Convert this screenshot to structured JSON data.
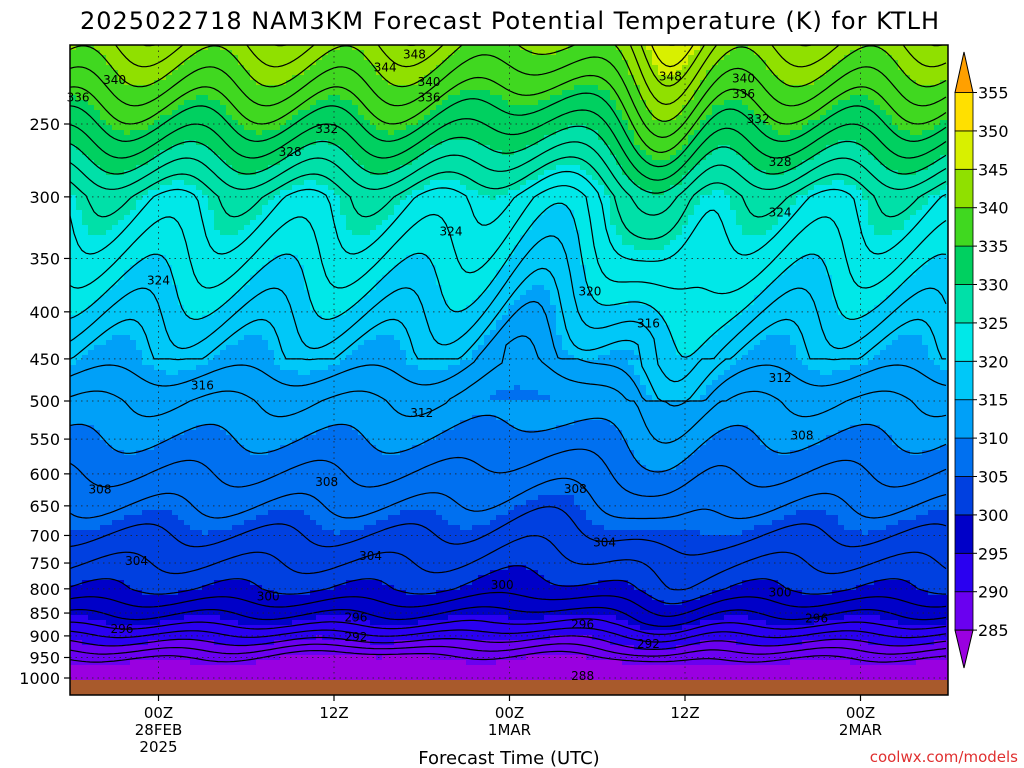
{
  "chart_data": {
    "type": "heatmap",
    "title": "2025022718 NAM3KM Forecast Potential Temperature (K) for KTLH",
    "xlabel": "Forecast Time (UTC)",
    "ylabel": "",
    "y_scale": "log",
    "y_reversed": true,
    "y_ticks": [
      250,
      300,
      350,
      400,
      450,
      500,
      550,
      600,
      650,
      700,
      750,
      800,
      850,
      900,
      950,
      1000
    ],
    "x_ticks": [
      {
        "hour": 6,
        "lines": [
          "00Z",
          "28FEB",
          "2025"
        ]
      },
      {
        "hour": 18,
        "lines": [
          "12Z"
        ]
      },
      {
        "hour": 30,
        "lines": [
          "00Z",
          "1MAR"
        ]
      },
      {
        "hour": 42,
        "lines": [
          "12Z"
        ]
      },
      {
        "hour": 54,
        "lines": [
          "00Z",
          "2MAR"
        ]
      }
    ],
    "x_range_hours": [
      0,
      60
    ],
    "grid": true,
    "colorbar": {
      "levels": [
        285,
        290,
        295,
        300,
        305,
        310,
        315,
        320,
        325,
        330,
        335,
        340,
        345,
        350,
        355
      ],
      "colors": [
        "#9a00e0",
        "#6a00f0",
        "#2a00f0",
        "#0000c8",
        "#0040e0",
        "#0070f0",
        "#00a0f8",
        "#00c8f8",
        "#00e8e8",
        "#00e0a8",
        "#00d060",
        "#40d820",
        "#90e000",
        "#d8f000",
        "#ffe000",
        "#ffa000"
      ]
    },
    "contour_labels": [
      {
        "value": "348",
        "hour": 23.5,
        "p": 210
      },
      {
        "value": "344",
        "hour": 21.5,
        "p": 217
      },
      {
        "value": "340",
        "hour": 3,
        "p": 224
      },
      {
        "value": "340",
        "hour": 24.5,
        "p": 225
      },
      {
        "value": "336",
        "hour": 0.5,
        "p": 234
      },
      {
        "value": "336",
        "hour": 24.5,
        "p": 234
      },
      {
        "value": "348",
        "hour": 41,
        "p": 222
      },
      {
        "value": "340",
        "hour": 46,
        "p": 223
      },
      {
        "value": "336",
        "hour": 46,
        "p": 232
      },
      {
        "value": "332",
        "hour": 17.5,
        "p": 253
      },
      {
        "value": "332",
        "hour": 47,
        "p": 247
      },
      {
        "value": "328",
        "hour": 15,
        "p": 268
      },
      {
        "value": "328",
        "hour": 48.5,
        "p": 275
      },
      {
        "value": "324",
        "hour": 26,
        "p": 327
      },
      {
        "value": "324",
        "hour": 48.5,
        "p": 312
      },
      {
        "value": "324",
        "hour": 6,
        "p": 370
      },
      {
        "value": "320",
        "hour": 35.5,
        "p": 380
      },
      {
        "value": "316",
        "hour": 39.5,
        "p": 412
      },
      {
        "value": "316",
        "hour": 9,
        "p": 481
      },
      {
        "value": "312",
        "hour": 48.5,
        "p": 472
      },
      {
        "value": "312",
        "hour": 24,
        "p": 515
      },
      {
        "value": "308",
        "hour": 50,
        "p": 545
      },
      {
        "value": "308",
        "hour": 2,
        "p": 624
      },
      {
        "value": "308",
        "hour": 17.5,
        "p": 612
      },
      {
        "value": "308",
        "hour": 34.5,
        "p": 623
      },
      {
        "value": "304",
        "hour": 36.5,
        "p": 712
      },
      {
        "value": "304",
        "hour": 4.5,
        "p": 746
      },
      {
        "value": "304",
        "hour": 20.5,
        "p": 737
      },
      {
        "value": "300",
        "hour": 29.5,
        "p": 792
      },
      {
        "value": "300",
        "hour": 13.5,
        "p": 816
      },
      {
        "value": "300",
        "hour": 48.5,
        "p": 807
      },
      {
        "value": "296",
        "hour": 19.5,
        "p": 860
      },
      {
        "value": "296",
        "hour": 35,
        "p": 875
      },
      {
        "value": "296",
        "hour": 51,
        "p": 862
      },
      {
        "value": "296",
        "hour": 3.5,
        "p": 885
      },
      {
        "value": "292",
        "hour": 19.5,
        "p": 903
      },
      {
        "value": "292",
        "hour": 39.5,
        "p": 918
      },
      {
        "value": "288",
        "hour": 35,
        "p": 995
      }
    ]
  },
  "footer": {
    "credit": "coolwx.com/models"
  }
}
